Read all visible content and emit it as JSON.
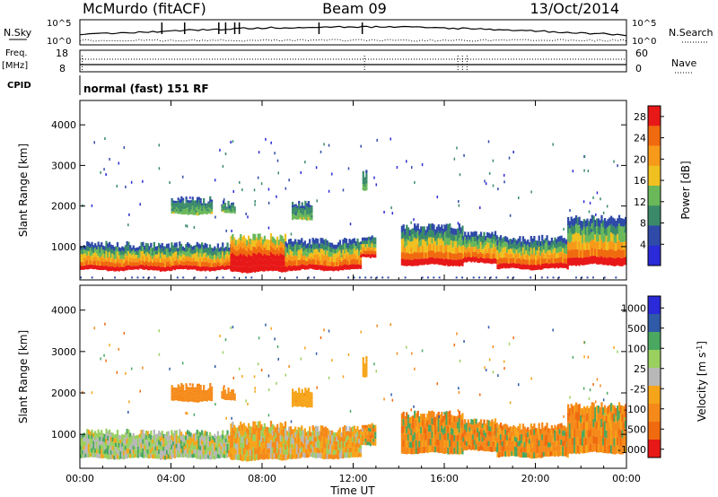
{
  "header": {
    "title": "McMurdo (fitACF)",
    "beam": "Beam 09",
    "date": "13/Oct/2014"
  },
  "sky_panel": {
    "left_label": "N.Sky",
    "right_label": "N.Search",
    "top_tick": "10^5",
    "bottom_tick": "10^0"
  },
  "freq_panel": {
    "left_label_1": "Freq.",
    "left_label_2": "[MHz]",
    "left_top_tick": "18",
    "left_bottom_tick": "8",
    "right_label": "Nave",
    "right_top_tick": "60",
    "right_bottom_tick": "0"
  },
  "cpid": {
    "label": "CPID",
    "value": "normal (fast) 151 RF"
  },
  "colors": {
    "power": [
      "#2a2ad8",
      "#2f4aa8",
      "#3a8a6a",
      "#6ab85a",
      "#f0c020",
      "#f79a1a",
      "#f06a10",
      "#e81818"
    ],
    "velocity": [
      "#e81818",
      "#f06a10",
      "#f58a1a",
      "#f6a51a",
      "#b8b8b8",
      "#9ad060",
      "#4aa860",
      "#2f5aa8",
      "#2a2ad8"
    ]
  },
  "chart_data": [
    {
      "type": "heatmap",
      "panel": "power",
      "ylabel": "Slant Range [km]",
      "yticks": [
        "1000",
        "2000",
        "3000",
        "4000"
      ],
      "ylim": [
        180,
        4600
      ],
      "xticks": [
        "00:00",
        "04:00",
        "08:00",
        "12:00",
        "16:00",
        "20:00",
        "00:00"
      ],
      "xlim_hours": [
        0,
        24
      ],
      "colorbar": {
        "label": "Power [dB]",
        "ticks": [
          "4",
          "8",
          "12",
          "16",
          "20",
          "24",
          "28"
        ],
        "range": [
          0,
          30
        ]
      },
      "bands": [
        {
          "t0": 0.0,
          "t1": 6.6,
          "r_low": 420,
          "r_high": 1050
        },
        {
          "t0": 6.6,
          "t1": 9.0,
          "r_low": 380,
          "r_high": 1250
        },
        {
          "t0": 9.0,
          "t1": 12.3,
          "r_low": 420,
          "r_high": 1130
        },
        {
          "t0": 12.3,
          "t1": 13.0,
          "r_low": 750,
          "r_high": 1200
        },
        {
          "t0": 14.1,
          "t1": 16.8,
          "r_low": 540,
          "r_high": 1500
        },
        {
          "t0": 16.8,
          "t1": 18.3,
          "r_low": 600,
          "r_high": 1300
        },
        {
          "t0": 18.3,
          "t1": 21.4,
          "r_low": 450,
          "r_high": 1200
        },
        {
          "t0": 21.4,
          "t1": 24.0,
          "r_low": 550,
          "r_high": 1700
        },
        {
          "t0": 4.0,
          "t1": 5.8,
          "r_low": 1800,
          "r_high": 2150
        },
        {
          "t0": 6.2,
          "t1": 6.8,
          "r_low": 1850,
          "r_high": 2050
        },
        {
          "t0": 9.3,
          "t1": 10.2,
          "r_low": 1650,
          "r_high": 2050
        },
        {
          "t0": 12.4,
          "t1": 12.6,
          "r_low": 2400,
          "r_high": 2800
        }
      ]
    },
    {
      "type": "heatmap",
      "panel": "velocity",
      "ylabel": "Slant Range [km]",
      "yticks": [
        "1000",
        "2000",
        "3000",
        "4000"
      ],
      "ylim": [
        180,
        4600
      ],
      "xticks": [
        "00:00",
        "04:00",
        "08:00",
        "12:00",
        "16:00",
        "20:00",
        "00:00"
      ],
      "xlim_hours": [
        0,
        24
      ],
      "xlabel": "Time UT",
      "colorbar": {
        "label": "Velocity [m s^-1]",
        "ticks": [
          "-1000",
          "-500",
          "-100",
          "-25",
          "25",
          "100",
          "500",
          "1000"
        ],
        "range": [
          -1200,
          1200
        ]
      }
    }
  ]
}
